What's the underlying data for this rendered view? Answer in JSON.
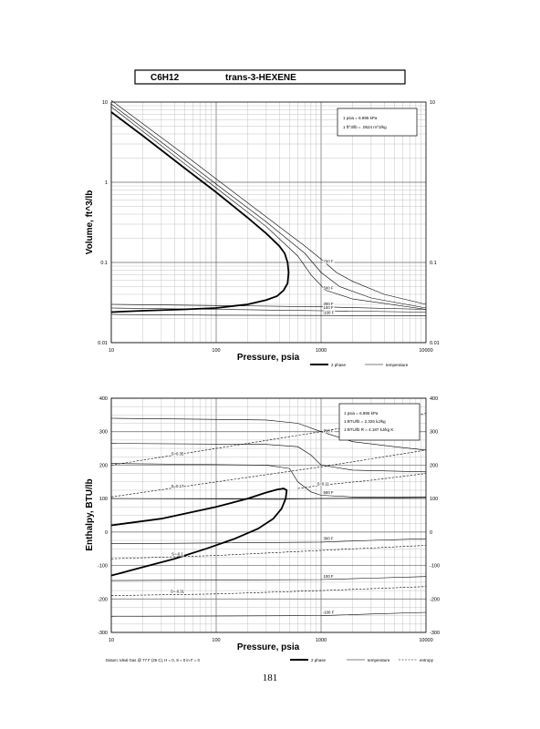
{
  "header": {
    "formula": "C6H12",
    "name": "trans-3-HEXENE"
  },
  "page_number": "181",
  "chart_data": [
    {
      "type": "line",
      "x_scale": "log",
      "y_scale": "log",
      "xlim": [
        10,
        10000
      ],
      "ylim": [
        0.01,
        10
      ],
      "xlabel": "Pressure, psia",
      "ylabel": "Volume, ft^3/lb",
      "x_ticks": [
        "10",
        "100",
        "1000",
        "10000"
      ],
      "y_ticks_left": [
        "10",
        "1",
        "0.1",
        "0.01"
      ],
      "y_ticks_right": [
        "10",
        "0.1",
        "0.01"
      ],
      "grid": true,
      "info_lines": [
        "1 psia = 6.895 kPa",
        "1 ft^3/lb = .0624 m^3/kg"
      ],
      "legend": [
        "2 phase",
        "temperature"
      ],
      "series": [
        {
          "kind": "2phase",
          "x": [
            10,
            20,
            50,
            100,
            200,
            300,
            400,
            450,
            480,
            490,
            480,
            440,
            380,
            300,
            200,
            100,
            50,
            20,
            10
          ],
          "y": [
            7.5,
            3.8,
            1.5,
            0.75,
            0.36,
            0.23,
            0.16,
            0.13,
            0.1,
            0.075,
            0.055,
            0.045,
            0.038,
            0.034,
            0.03,
            0.027,
            0.026,
            0.025,
            0.024
          ]
        },
        {
          "label": "700 F",
          "x": [
            10,
            50,
            100,
            300,
            700,
            1000,
            1400,
            2000,
            4000,
            10000
          ],
          "y": [
            10.5,
            2.2,
            1.1,
            0.37,
            0.16,
            0.11,
            0.075,
            0.058,
            0.04,
            0.03
          ]
        },
        {
          "label": "",
          "x": [
            10,
            50,
            100,
            300,
            700,
            1000,
            1500,
            3000,
            10000
          ],
          "y": [
            9.5,
            1.9,
            0.95,
            0.32,
            0.13,
            0.075,
            0.05,
            0.036,
            0.027
          ]
        },
        {
          "label": "500 F",
          "x": [
            10,
            50,
            100,
            300,
            600,
            800,
            1100,
            2000,
            10000
          ],
          "y": [
            8.7,
            1.7,
            0.85,
            0.28,
            0.12,
            0.07,
            0.045,
            0.035,
            0.026
          ]
        },
        {
          "label": "300 F",
          "x": [
            10,
            100,
            1000,
            10000
          ],
          "y": [
            0.03,
            0.029,
            0.028,
            0.026
          ]
        },
        {
          "label": "100 F",
          "x": [
            10,
            100,
            1000,
            10000
          ],
          "y": [
            0.027,
            0.026,
            0.025,
            0.024
          ]
        },
        {
          "label": "-100 F",
          "x": [
            10,
            100,
            1000,
            10000
          ],
          "y": [
            0.0225,
            0.022,
            0.0218,
            0.0215
          ]
        }
      ]
    },
    {
      "type": "line",
      "x_scale": "log",
      "xlim": [
        10,
        10000
      ],
      "ylim": [
        -300,
        400
      ],
      "xlabel": "Pressure, psia",
      "ylabel": "Enthalpy, BTU/lb",
      "x_ticks": [
        "10",
        "100",
        "1000",
        "10000"
      ],
      "y_ticks": [
        "400",
        "300",
        "200",
        "100",
        "0",
        "-100",
        "-200",
        "-300"
      ],
      "grid": true,
      "info_lines": [
        "1 psia = 6.895 kPa",
        "1 BTU/lb = 2.326 kJ/kg",
        "1 BTU/lb R = 4.187 kJ/kg K"
      ],
      "datum_note": "Datum: Ideal Gas @ 77 F (25 C), H = 0, S = 0 in F = 0",
      "legend": [
        "2 phase",
        "temperature",
        "entropy"
      ],
      "series": [
        {
          "kind": "2phase",
          "x": [
            10,
            30,
            100,
            200,
            300,
            380,
            440,
            470,
            460,
            420,
            350,
            250,
            150,
            80,
            40,
            20,
            10
          ],
          "y": [
            20,
            40,
            75,
            100,
            118,
            127,
            130,
            125,
            100,
            70,
            40,
            10,
            -20,
            -50,
            -80,
            -105,
            -130
          ]
        },
        {
          "label": "700 F",
          "x": [
            10,
            300,
            600,
            1000,
            2000,
            5000,
            10000
          ],
          "y": [
            340,
            335,
            325,
            300,
            270,
            255,
            245
          ]
        },
        {
          "label": "",
          "x": [
            10,
            300,
            600,
            800,
            1000,
            2000,
            10000
          ],
          "y": [
            265,
            262,
            255,
            230,
            200,
            185,
            180
          ]
        },
        {
          "label": "500 F",
          "x": [
            10,
            300,
            500,
            600,
            800,
            1000,
            2000,
            10000
          ],
          "y": [
            205,
            200,
            190,
            150,
            120,
            110,
            105,
            105
          ]
        },
        {
          "label": "",
          "x": [
            10,
            400,
            1000,
            10000
          ],
          "y": [
            100,
            98,
            100,
            103
          ]
        },
        {
          "label": "300 F",
          "x": [
            10,
            1000,
            3000,
            10000
          ],
          "y": [
            -35,
            -30,
            -25,
            -20
          ]
        },
        {
          "label": "100 F",
          "x": [
            10,
            1000,
            3000,
            10000
          ],
          "y": [
            -145,
            -142,
            -138,
            -133
          ]
        },
        {
          "label": "-100 F",
          "x": [
            10,
            1000,
            3000,
            10000
          ],
          "y": [
            -252,
            -250,
            -245,
            -240
          ]
        },
        {
          "kind": "entropy",
          "label": "S=0.35",
          "x": [
            10,
            100,
            1000,
            10000
          ],
          "y": [
            200,
            250,
            300,
            355
          ]
        },
        {
          "kind": "entropy",
          "label": "S=0.17",
          "x": [
            10,
            100,
            1000,
            10000
          ],
          "y": [
            105,
            150,
            195,
            245
          ]
        },
        {
          "kind": "entropy",
          "label": "S=0.11",
          "x": [
            600,
            1000,
            3000,
            10000
          ],
          "y": [
            130,
            140,
            155,
            175
          ]
        },
        {
          "kind": "entropy",
          "label": "S=-0.1",
          "x": [
            10,
            100,
            1000,
            10000
          ],
          "y": [
            -80,
            -70,
            -55,
            -40
          ]
        },
        {
          "kind": "entropy",
          "label": "S=-0.31",
          "x": [
            10,
            100,
            1000,
            10000
          ],
          "y": [
            -190,
            -185,
            -175,
            -163
          ]
        }
      ]
    }
  ]
}
